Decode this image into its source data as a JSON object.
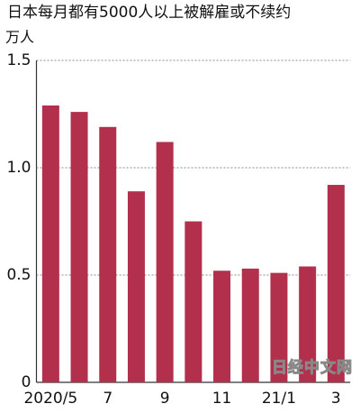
{
  "chart_data": {
    "type": "bar",
    "title": "日本每月都有5000人以上被解雇或不续约",
    "y_unit": "万人",
    "categories": [
      "2020/5",
      null,
      "7",
      null,
      "9",
      null,
      "11",
      null,
      "21/1",
      null,
      "3"
    ],
    "values": [
      1.29,
      1.26,
      1.19,
      0.89,
      1.12,
      0.75,
      0.52,
      0.53,
      0.51,
      0.54,
      0.92
    ],
    "color": "#b2304c",
    "ylim": [
      0,
      1.5
    ],
    "yticks": [
      0,
      0.5,
      {
        "value": 1,
        "label": "1.0"
      },
      1.5
    ],
    "grid": true,
    "watermark": "日经中文网"
  }
}
